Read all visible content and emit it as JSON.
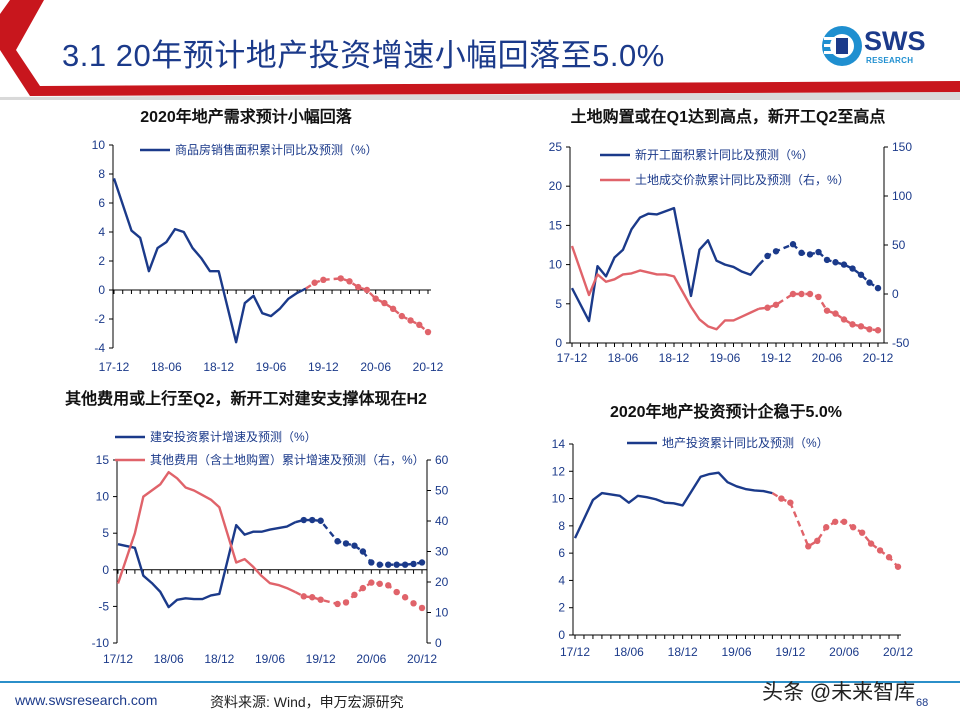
{
  "header": {
    "title": "3.1 20年预计地产投资增速小幅回落至5.0%",
    "logo_text": "SWS",
    "logo_subtext": "RESEARCH"
  },
  "footer": {
    "url": "www.swsresearch.com",
    "source": "资料来源: Wind，申万宏源研究",
    "watermark": "头条 @未来智库",
    "page_number": "68"
  },
  "colors": {
    "brand_red": "#c8161d",
    "navy": "#1b3a8a",
    "forecast_red": "#e0636a",
    "footer_line": "#2b8fc9"
  },
  "chart_data": [
    {
      "type": "line",
      "title": "2020年地产需求预计小幅回落",
      "categories": [
        "2017-12",
        "2018-01",
        "2018-02",
        "2018-03",
        "2018-04",
        "2018-05",
        "2018-06",
        "2018-07",
        "2018-08",
        "2018-09",
        "2018-10",
        "2018-11",
        "2018-12",
        "2019-01",
        "2019-02",
        "2019-03",
        "2019-04",
        "2019-05",
        "2019-06",
        "2019-07",
        "2019-08",
        "2019-09",
        "2019-10",
        "2019-11",
        "2019-12",
        "2020-01",
        "2020-02",
        "2020-03",
        "2020-04",
        "2020-05",
        "2020-06",
        "2020-07",
        "2020-08",
        "2020-09",
        "2020-10",
        "2020-11",
        "2020-12"
      ],
      "xtick_labels": [
        "17-12",
        "18-06",
        "18-12",
        "19-06",
        "19-12",
        "20-06",
        "20-12"
      ],
      "ylim": [
        -4,
        10
      ],
      "yticks": [
        "10",
        "8",
        "6",
        "4",
        "2",
        "0",
        "-2",
        "-4"
      ],
      "legend": "top",
      "series": [
        {
          "name": "商品房销售面积累计同比及预测（%）",
          "axis": "left",
          "color": "#1b3a8a",
          "forecast_color": "#e0636a",
          "forecast_from": "2019-10",
          "values": [
            7.7,
            null,
            4.1,
            3.6,
            1.3,
            2.9,
            3.3,
            4.2,
            4.0,
            2.9,
            2.2,
            1.3,
            1.3,
            null,
            -3.6,
            -0.9,
            -0.4,
            -1.6,
            -1.8,
            -1.3,
            -0.6,
            -0.2,
            0.1,
            0.5,
            0.7,
            null,
            0.8,
            0.6,
            0.2,
            0.0,
            -0.6,
            -0.9,
            -1.3,
            -1.8,
            -2.1,
            -2.4,
            -2.9
          ]
        }
      ]
    },
    {
      "type": "line",
      "title": "土地购置或在Q1达到高点，新开工Q2至高点",
      "categories": [
        "2017-12",
        "2018-01",
        "2018-02",
        "2018-03",
        "2018-04",
        "2018-05",
        "2018-06",
        "2018-07",
        "2018-08",
        "2018-09",
        "2018-10",
        "2018-11",
        "2018-12",
        "2019-01",
        "2019-02",
        "2019-03",
        "2019-04",
        "2019-05",
        "2019-06",
        "2019-07",
        "2019-08",
        "2019-09",
        "2019-10",
        "2019-11",
        "2019-12",
        "2020-01",
        "2020-02",
        "2020-03",
        "2020-04",
        "2020-05",
        "2020-06",
        "2020-07",
        "2020-08",
        "2020-09",
        "2020-10",
        "2020-11",
        "2020-12"
      ],
      "xtick_labels": [
        "17-12",
        "18-06",
        "18-12",
        "19-06",
        "19-12",
        "20-06",
        "20-12"
      ],
      "ylim": [
        0,
        25
      ],
      "yticks": [
        "25",
        "20",
        "15",
        "10",
        "5",
        "0"
      ],
      "y2lim": [
        -50,
        150
      ],
      "y2ticks": [
        "150",
        "100",
        "50",
        "0",
        "-50"
      ],
      "legend": "top",
      "series": [
        {
          "name": "新开工面积累计同比及预测（%）",
          "axis": "left",
          "color": "#1b3a8a",
          "forecast_color": "#1b3a8a",
          "forecast_from": "2019-10",
          "values": [
            7.0,
            null,
            2.8,
            9.8,
            8.5,
            10.9,
            11.9,
            14.5,
            16.0,
            16.5,
            16.4,
            16.8,
            17.2,
            null,
            6.0,
            11.9,
            13.1,
            10.5,
            10.0,
            9.7,
            9.1,
            8.7,
            10.0,
            11.1,
            11.7,
            null,
            12.6,
            11.5,
            11.3,
            11.6,
            10.6,
            10.3,
            10.0,
            9.5,
            8.7,
            7.7,
            7.0
          ]
        },
        {
          "name": "土地成交价款累计同比及预测（右，%）",
          "axis": "right",
          "color": "#e0636a",
          "forecast_color": "#e0636a",
          "forecast_from": "2019-10",
          "values": [
            49,
            null,
            -1,
            20,
            12.5,
            15,
            20,
            21,
            24,
            22,
            20,
            20,
            18,
            null,
            -13,
            -26,
            -33,
            -36,
            -27,
            -27,
            -23,
            -19,
            -15,
            -14,
            -11,
            null,
            0,
            0,
            0,
            -3,
            -17,
            -20,
            -26,
            -31,
            -33,
            -36,
            -37
          ]
        }
      ]
    },
    {
      "type": "line",
      "title": "其他费用或上行至Q2，新开工对建安支撑体现在H2",
      "categories": [
        "2017-12",
        "2018-01",
        "2018-02",
        "2018-03",
        "2018-04",
        "2018-05",
        "2018-06",
        "2018-07",
        "2018-08",
        "2018-09",
        "2018-10",
        "2018-11",
        "2018-12",
        "2019-01",
        "2019-02",
        "2019-03",
        "2019-04",
        "2019-05",
        "2019-06",
        "2019-07",
        "2019-08",
        "2019-09",
        "2019-10",
        "2019-11",
        "2019-12",
        "2020-01",
        "2020-02",
        "2020-03",
        "2020-04",
        "2020-05",
        "2020-06",
        "2020-07",
        "2020-08",
        "2020-09",
        "2020-10",
        "2020-11",
        "2020-12"
      ],
      "xtick_labels": [
        "17/12",
        "18/06",
        "18/12",
        "19/06",
        "19/12",
        "20/06",
        "20/12"
      ],
      "ylim": [
        -10,
        15
      ],
      "yticks": [
        "15",
        "10",
        "5",
        "0",
        "-5",
        "-10"
      ],
      "y2lim": [
        0,
        60
      ],
      "y2ticks": [
        "60",
        "50",
        "40",
        "30",
        "20",
        "10",
        "0"
      ],
      "legend": "top",
      "series": [
        {
          "name": "建安投资累计增速及预测（%）",
          "axis": "left",
          "color": "#1b3a8a",
          "forecast_color": "#1b3a8a",
          "forecast_from": "2019-09",
          "values": [
            3.5,
            null,
            3.0,
            -0.8,
            -1.8,
            -3.0,
            -5.1,
            -4.1,
            -3.9,
            -4.0,
            -4.0,
            -3.5,
            -3.3,
            null,
            6.1,
            4.8,
            5.2,
            5.2,
            5.5,
            5.7,
            5.9,
            6.5,
            6.8,
            6.8,
            6.7,
            null,
            3.9,
            3.6,
            3.3,
            2.5,
            1.0,
            0.7,
            0.7,
            0.7,
            0.7,
            0.8,
            1.0
          ]
        },
        {
          "name": "其他费用（含土地购置）累计增速及预测（右，%）",
          "axis": "right",
          "color": "#e0636a",
          "forecast_color": "#e0636a",
          "forecast_from": "2019-09",
          "values": [
            19.5,
            null,
            36,
            48,
            50,
            52,
            56,
            54,
            51,
            50,
            48.5,
            47,
            44.5,
            null,
            26.4,
            27.5,
            25,
            22,
            19.6,
            19,
            18,
            16.7,
            15.3,
            15,
            14.2,
            null,
            12.8,
            13.3,
            15.8,
            18,
            19.8,
            19.4,
            18.9,
            16.7,
            15,
            13,
            11.5
          ]
        }
      ]
    },
    {
      "type": "line",
      "title": "2020年地产投资预计企稳于5.0%",
      "categories": [
        "2017-12",
        "2018-01",
        "2018-02",
        "2018-03",
        "2018-04",
        "2018-05",
        "2018-06",
        "2018-07",
        "2018-08",
        "2018-09",
        "2018-10",
        "2018-11",
        "2018-12",
        "2019-01",
        "2019-02",
        "2019-03",
        "2019-04",
        "2019-05",
        "2019-06",
        "2019-07",
        "2019-08",
        "2019-09",
        "2019-10",
        "2019-11",
        "2019-12",
        "2020-01",
        "2020-02",
        "2020-03",
        "2020-04",
        "2020-05",
        "2020-06",
        "2020-07",
        "2020-08",
        "2020-09",
        "2020-10",
        "2020-11",
        "2020-12"
      ],
      "xtick_labels": [
        "17/12",
        "18/06",
        "18/12",
        "19/06",
        "19/12",
        "20/06",
        "20/12"
      ],
      "ylim": [
        0,
        14
      ],
      "yticks": [
        "14",
        "12",
        "10",
        "8",
        "6",
        "4",
        "2",
        "0"
      ],
      "legend": "top",
      "series": [
        {
          "name": "地产投资累计同比及预测（%）",
          "axis": "left",
          "color": "#1b3a8a",
          "forecast_color": "#e0636a",
          "forecast_from": "2019-10",
          "values": [
            7.1,
            null,
            9.9,
            10.4,
            10.3,
            10.2,
            9.7,
            10.2,
            10.1,
            9.95,
            9.7,
            9.65,
            9.5,
            null,
            11.6,
            11.8,
            11.9,
            11.2,
            10.9,
            10.7,
            10.6,
            10.55,
            10.4,
            10.0,
            9.7,
            null,
            6.5,
            6.9,
            7.9,
            8.3,
            8.3,
            7.9,
            7.5,
            6.7,
            6.2,
            5.7,
            5.0
          ]
        }
      ]
    }
  ]
}
